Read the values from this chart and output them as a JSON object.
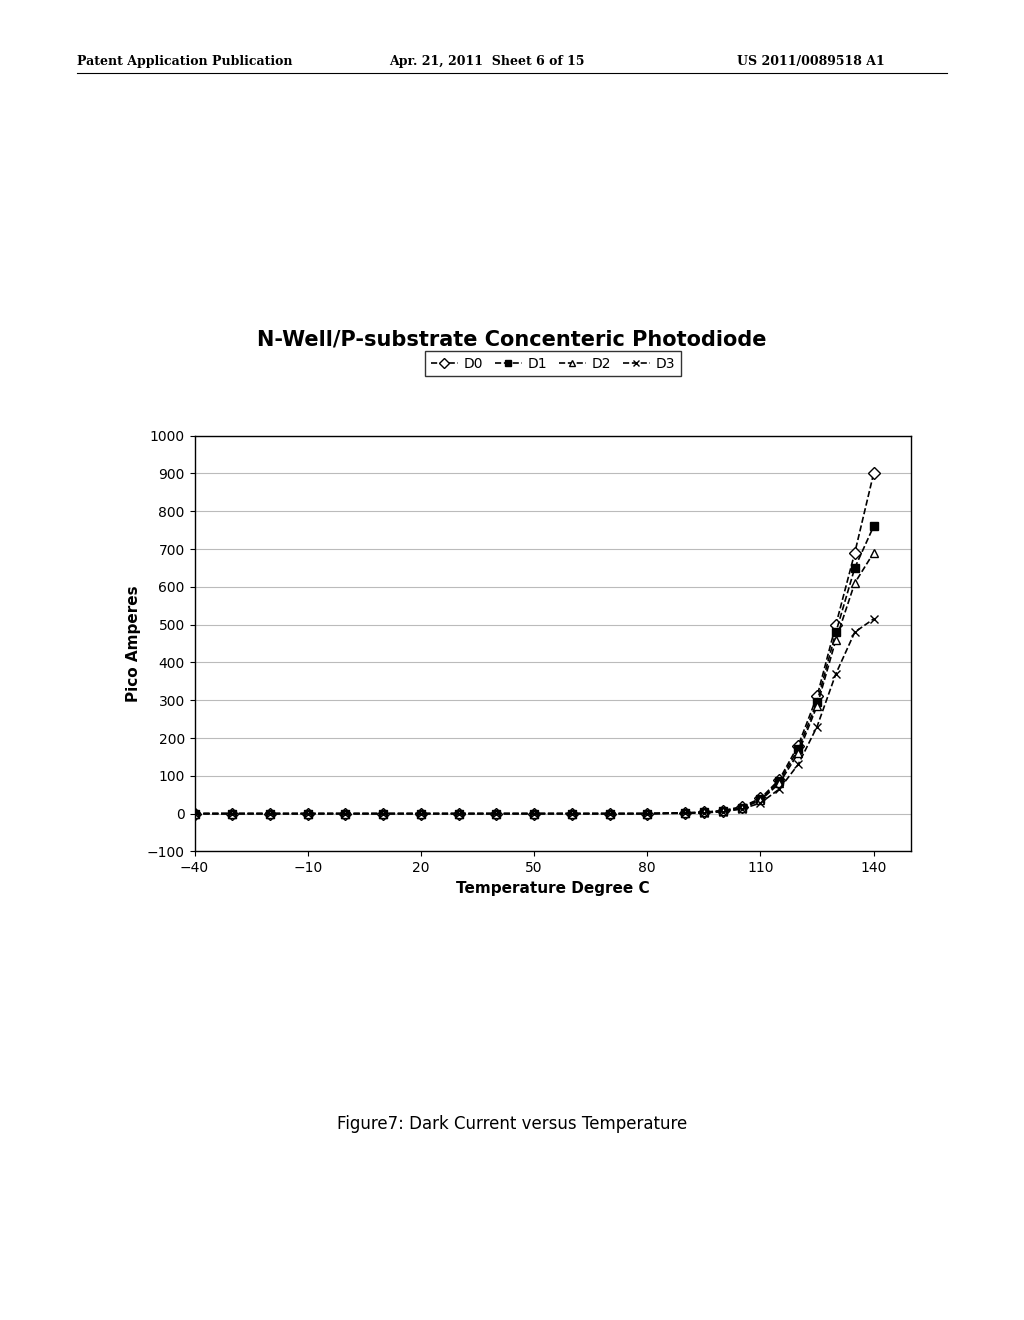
{
  "title": "N-Well/P-substrate Concenteric Photodiode",
  "xlabel": "Temperature Degree C",
  "ylabel": "Pico Amperes",
  "figure_caption": "Figure7: Dark Current versus Temperature",
  "header_left": "Patent Application Publication",
  "header_mid": "Apr. 21, 2011  Sheet 6 of 15",
  "header_right": "US 2011/0089518 A1",
  "xlim": [
    -40,
    150
  ],
  "ylim": [
    -100,
    1000
  ],
  "xticks": [
    -40,
    -10,
    20,
    50,
    80,
    110,
    140
  ],
  "yticks": [
    -100,
    0,
    100,
    200,
    300,
    400,
    500,
    600,
    700,
    800,
    900,
    1000
  ],
  "series": {
    "D0": {
      "x": [
        -40,
        -30,
        -20,
        -10,
        0,
        10,
        20,
        30,
        40,
        50,
        60,
        70,
        80,
        90,
        95,
        100,
        105,
        110,
        115,
        120,
        125,
        130,
        135,
        140
      ],
      "y": [
        0,
        0,
        0,
        0,
        0,
        0,
        0,
        0,
        0,
        0,
        0,
        0,
        0,
        2,
        4,
        8,
        18,
        40,
        90,
        180,
        310,
        500,
        690,
        900
      ],
      "marker": "D",
      "linestyle": "--",
      "color": "#000000",
      "markersize": 6,
      "markerfacecolor": "white",
      "label": "D0"
    },
    "D1": {
      "x": [
        -40,
        -30,
        -20,
        -10,
        0,
        10,
        20,
        30,
        40,
        50,
        60,
        70,
        80,
        90,
        95,
        100,
        105,
        110,
        115,
        120,
        125,
        130,
        135,
        140
      ],
      "y": [
        0,
        0,
        0,
        0,
        0,
        0,
        0,
        0,
        0,
        0,
        0,
        0,
        0,
        2,
        3,
        7,
        16,
        38,
        85,
        170,
        295,
        480,
        650,
        760
      ],
      "marker": "s",
      "linestyle": "--",
      "color": "#000000",
      "markersize": 6,
      "markerfacecolor": "black",
      "label": "D1"
    },
    "D2": {
      "x": [
        -40,
        -30,
        -20,
        -10,
        0,
        10,
        20,
        30,
        40,
        50,
        60,
        70,
        80,
        90,
        95,
        100,
        105,
        110,
        115,
        120,
        125,
        130,
        135,
        140
      ],
      "y": [
        0,
        0,
        0,
        0,
        0,
        0,
        0,
        0,
        0,
        0,
        0,
        0,
        0,
        1,
        3,
        6,
        14,
        35,
        80,
        160,
        285,
        460,
        610,
        690
      ],
      "marker": "^",
      "linestyle": "--",
      "color": "#000000",
      "markersize": 6,
      "markerfacecolor": "white",
      "label": "D2"
    },
    "D3": {
      "x": [
        -40,
        -30,
        -20,
        -10,
        0,
        10,
        20,
        30,
        40,
        50,
        60,
        70,
        80,
        90,
        95,
        100,
        105,
        110,
        115,
        120,
        125,
        130,
        135,
        140
      ],
      "y": [
        0,
        0,
        0,
        0,
        0,
        0,
        0,
        0,
        0,
        0,
        0,
        0,
        0,
        1,
        2,
        5,
        12,
        28,
        65,
        130,
        230,
        370,
        480,
        515
      ],
      "marker": "x",
      "linestyle": "--",
      "color": "#000000",
      "markersize": 6,
      "markerfacecolor": "black",
      "label": "D3"
    }
  },
  "background_color": "#ffffff",
  "plot_bg_color": "#ffffff",
  "grid_color": "#bbbbbb",
  "title_fontsize": 15,
  "label_fontsize": 11,
  "tick_fontsize": 10,
  "legend_fontsize": 10,
  "header_fontsize": 9,
  "caption_fontsize": 12
}
